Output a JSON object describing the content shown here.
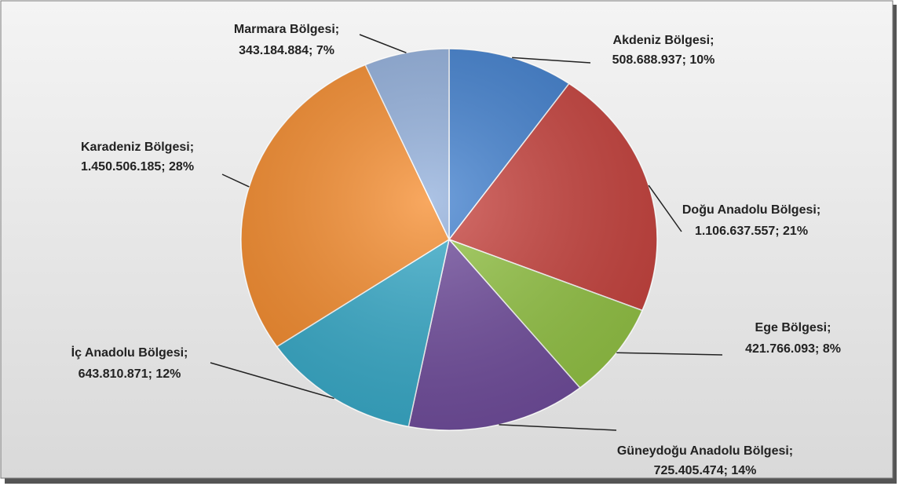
{
  "chart_data": {
    "type": "pie",
    "categories": [
      "Akdeniz Bölgesi;",
      "Doğu Anadolu Bölgesi;",
      "Ege Bölgesi;",
      "Güneydoğu Anadolu Bölgesi;",
      "İç Anadolu Bölgesi;",
      "Karadeniz Bölgesi;",
      "Marmara Bölgesi;"
    ],
    "values": [
      508688937,
      1106637557,
      421766093,
      725405474,
      643810871,
      1450506185,
      343184884
    ],
    "value_labels": [
      "508.688.937; 10%",
      "1.106.637.557; 21%",
      "421.766.093; 8%",
      "725.405.474; 14%",
      "643.810.871; 12%",
      "1.450.506.185; 28%",
      "343.184.884; 7%"
    ],
    "colors": [
      "#3f7fcf",
      "#c8413c",
      "#93c443",
      "#6f4b9c",
      "#35aac9",
      "#f68b2b",
      "#91afdc"
    ]
  }
}
